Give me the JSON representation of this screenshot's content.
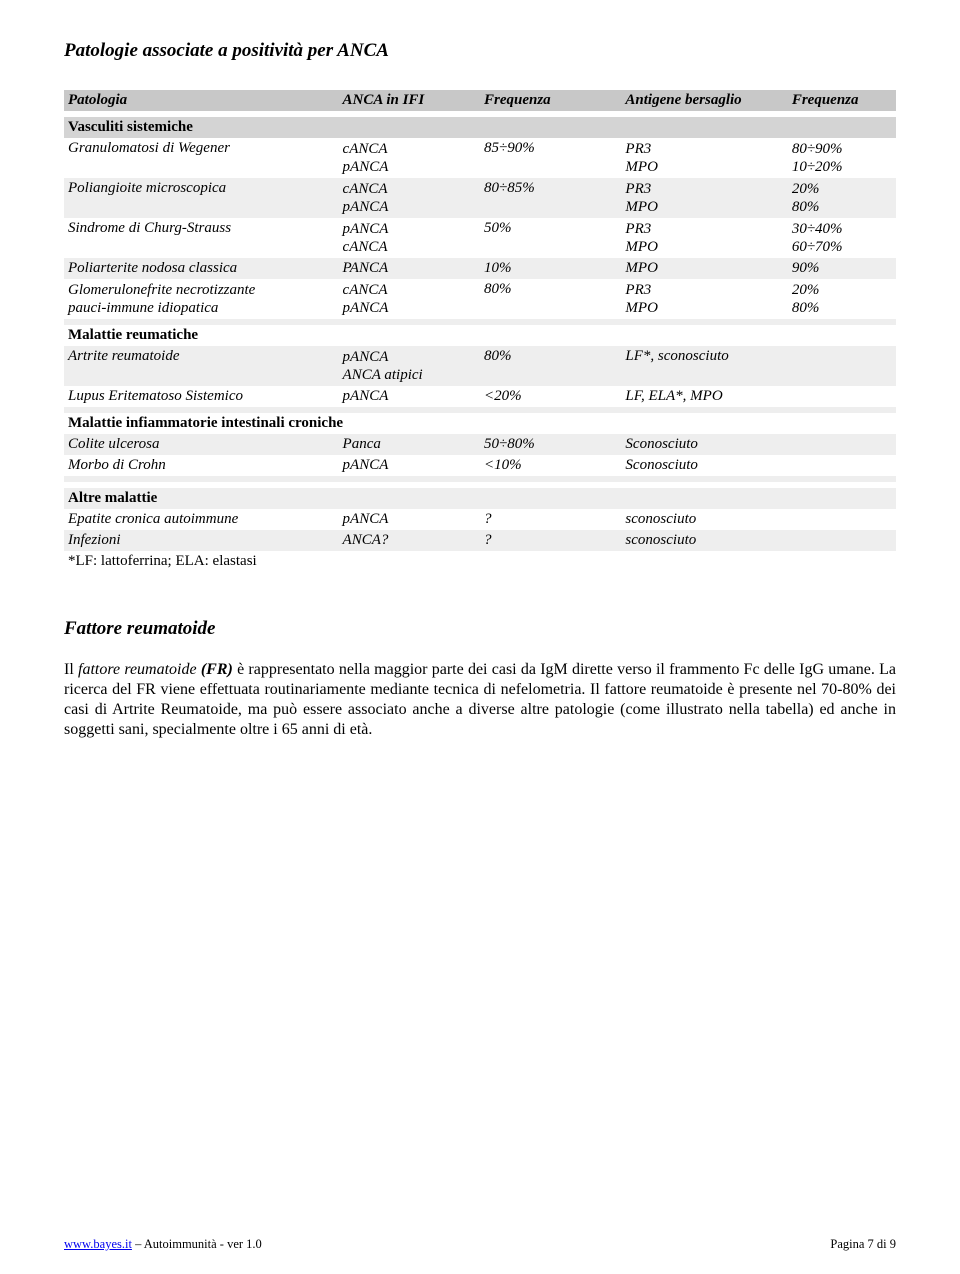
{
  "title": "Patologie associate a positività per ANCA",
  "headers": [
    "Patologia",
    "ANCA in IFI",
    "Frequenza",
    "Antigene bersaglio",
    "Frequenza"
  ],
  "sections": {
    "vasculiti": {
      "label": "Vasculiti sistemiche",
      "rows": [
        {
          "c1": "Granulomatosi di Wegener",
          "c2a": "cANCA",
          "c2b": "pANCA",
          "c3": "85÷90%",
          "c4a": "PR3",
          "c4b": "MPO",
          "c5a": "80÷90%",
          "c5b": "10÷20%"
        },
        {
          "c1": "Poliangioite microscopica",
          "c2a": "cANCA",
          "c2b": "pANCA",
          "c3": "80÷85%",
          "c4a": "PR3",
          "c4b": "MPO",
          "c5a": "20%",
          "c5b": "80%"
        },
        {
          "c1": "Sindrome di Churg-Strauss",
          "c2a": "pANCA",
          "c2b": "cANCA",
          "c3": "50%",
          "c4a": "PR3",
          "c4b": "MPO",
          "c5a": "30÷40%",
          "c5b": "60÷70%"
        },
        {
          "c1": "Poliarterite nodosa classica",
          "c2a": "PANCA",
          "c3": "10%",
          "c4a": "MPO",
          "c5a": "90%"
        },
        {
          "c1a": "Glomerulonefrite necrotizzante",
          "c1b": "pauci-immune idiopatica",
          "c2a": "cANCA",
          "c2b": "pANCA",
          "c3": "80%",
          "c4a": "PR3",
          "c4b": "MPO",
          "c5a": "20%",
          "c5b": "80%"
        }
      ]
    },
    "malattie_reumatiche": {
      "label": "Malattie reumatiche",
      "rows": [
        {
          "c1": "Artrite reumatoide",
          "c2a": "pANCA",
          "c2b": "ANCA atipici",
          "c3": "80%",
          "c4a": "LF*, sconosciuto"
        },
        {
          "c1": "Lupus Eritematoso Sistemico",
          "c2a": "pANCA",
          "c3": "<20%",
          "c4a": "LF, ELA*, MPO"
        }
      ]
    },
    "malattie_inf": {
      "label": "Malattie infiammatorie intestinali croniche",
      "rows": [
        {
          "c1": "Colite ulcerosa",
          "c2a": "Panca",
          "c3": "50÷80%",
          "c4a": "Sconosciuto"
        },
        {
          "c1": "Morbo di Crohn",
          "c2a": "pANCA",
          "c3": "<10%",
          "c4a": "Sconosciuto"
        }
      ]
    },
    "altre": {
      "label": "Altre malattie",
      "rows": [
        {
          "c1": "Epatite cronica autoimmune",
          "c2a": "pANCA",
          "c3": "?",
          "c4a": "sconosciuto"
        },
        {
          "c1": "Infezioni",
          "c2a": "ANCA?",
          "c3": "?",
          "c4a": "sconosciuto"
        }
      ]
    }
  },
  "footnote": "*LF: lattoferrina; ELA: elastasi",
  "section2": {
    "heading": "Fattore reumatoide",
    "body_pre": "Il ",
    "body_ital": "fattore reumatoide",
    "body_abbr": " (FR)",
    "body_rest": " è rappresentato nella maggior parte dei casi da IgM dirette verso il frammento Fc delle IgG umane.  La ricerca del FR viene effettuata routinariamente mediante tecnica di nefelometria.  Il fattore reumatoide è presente nel 70-80% dei casi di Artrite Reumatoide, ma può essere associato anche a diverse altre patologie (come illustrato nella tabella) ed anche in soggetti sani, specialmente oltre i 65 anni di età."
  },
  "footer": {
    "link": "www.bayes.it",
    "after_link": " – Autoimmunità - ver 1.0",
    "right": "Pagina 7 di 9"
  }
}
